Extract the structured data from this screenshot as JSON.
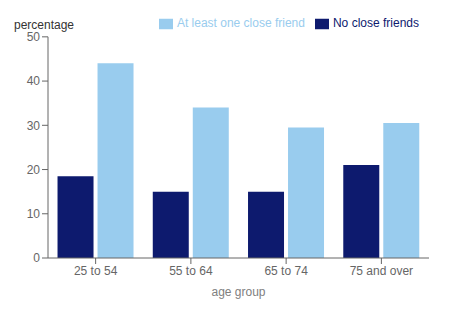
{
  "chart_data": {
    "type": "bar",
    "xlabel": "age group",
    "ylabel": "percentage",
    "categories": [
      "25 to 54",
      "55 to 64",
      "65 to 74",
      "75 and over"
    ],
    "series": [
      {
        "name": "No close friends",
        "color": "#0d1a6e",
        "values": [
          18.5,
          15.0,
          15.0,
          21.0
        ]
      },
      {
        "name": "At least one close friend",
        "color": "#99ccee",
        "values": [
          44.0,
          34.0,
          29.5,
          30.5
        ]
      }
    ],
    "ylim": [
      0,
      50
    ],
    "yticks": [
      0,
      10,
      20,
      30,
      40,
      50
    ],
    "legend": "upper right",
    "grid": false
  }
}
